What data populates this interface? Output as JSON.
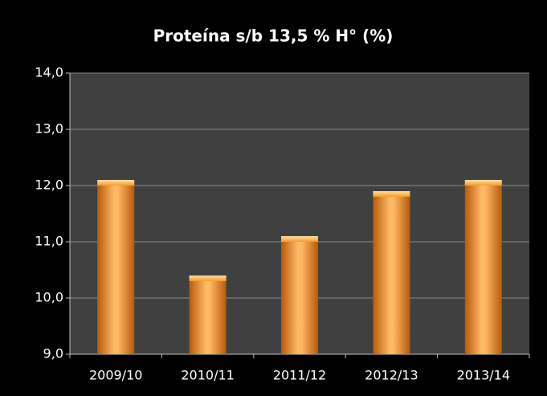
{
  "chart_data": {
    "type": "bar",
    "title": "Proteína s/b 13,5 % H° (%)",
    "categories": [
      "2009/10",
      "2010/11",
      "2011/12",
      "2012/13",
      "2013/14"
    ],
    "values": [
      12.1,
      10.4,
      11.1,
      11.9,
      12.1
    ],
    "color": "#f59a2e",
    "ylim": [
      9,
      14
    ],
    "yticks": [
      {
        "value": 9,
        "label": "9,0"
      },
      {
        "value": 10,
        "label": "10,0"
      },
      {
        "value": 11,
        "label": "11,0"
      },
      {
        "value": 12,
        "label": "12,0"
      },
      {
        "value": 13,
        "label": "13,0"
      },
      {
        "value": 14,
        "label": "14,0"
      }
    ],
    "grid": true
  }
}
